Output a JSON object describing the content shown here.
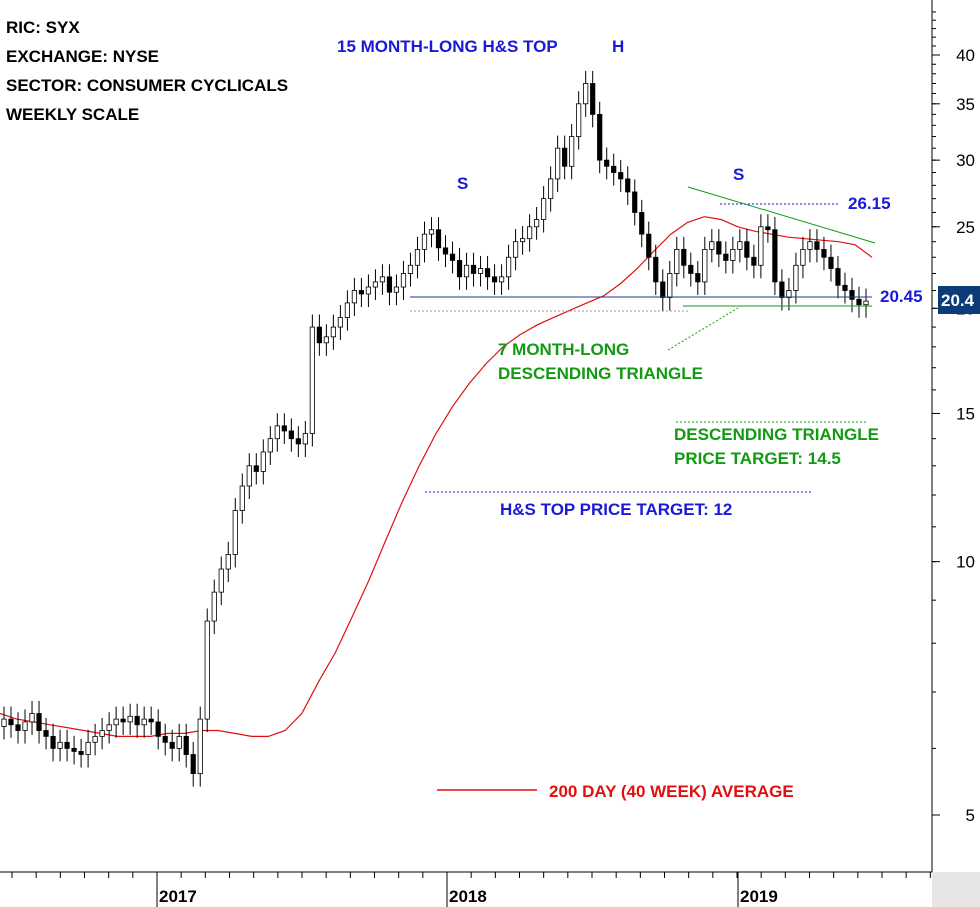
{
  "info": {
    "ric": "RIC: SYX",
    "exchange": "EXCHANGE: NYSE",
    "sector": "SECTOR: CONSUMER CYCLICALS",
    "scale": "WEEKLY SCALE"
  },
  "annotations": {
    "hs_title": "15 MONTH-LONG H&S TOP",
    "left_shoulder": "S",
    "head": "H",
    "right_shoulder": "S",
    "resistance_value": "26.15",
    "support_value": "20.45",
    "triangle_line1": "7 MONTH-LONG",
    "triangle_line2": "DESCENDING TRIANGLE",
    "triangle_target_line1": "DESCENDING TRIANGLE",
    "triangle_target_line2": "PRICE TARGET: 14.5",
    "hs_target": "H&S TOP PRICE TARGET: 12",
    "ma_legend": "200 DAY (40 WEEK) AVERAGE",
    "last_price": "20.4"
  },
  "colors": {
    "blue": "#1a1ad6",
    "green": "#139a13",
    "red": "#e01010",
    "navy": "#1f3a93",
    "last_price_bg": "#0d3b78",
    "candle": "#000000",
    "ma": "#e01010"
  },
  "chart_data": {
    "type": "candlestick",
    "y_scale": "log",
    "ylim": [
      4.5,
      45
    ],
    "y_ticks": [
      5,
      10,
      15,
      20,
      25,
      30,
      35,
      40
    ],
    "x_ticks": [
      "2017",
      "2018",
      "2019"
    ],
    "series": [
      {
        "name": "SYX weekly price (approx close)",
        "values": [
          6.5,
          6.4,
          6.3,
          6.45,
          6.6,
          6.3,
          6.2,
          6.0,
          6.1,
          6.0,
          5.95,
          5.9,
          6.1,
          6.2,
          6.3,
          6.4,
          6.5,
          6.45,
          6.55,
          6.4,
          6.5,
          6.45,
          6.2,
          6.1,
          6.0,
          6.2,
          5.9,
          5.6,
          6.5,
          8.5,
          9.2,
          9.8,
          10.2,
          11.5,
          12.3,
          13.0,
          12.8,
          13.5,
          14.0,
          14.5,
          14.3,
          14.0,
          13.8,
          14.2,
          19.0,
          18.2,
          18.5,
          19.0,
          19.5,
          20.3,
          21.0,
          20.8,
          21.2,
          21.5,
          21.8,
          20.9,
          21.2,
          22.0,
          22.5,
          23.5,
          24.5,
          24.8,
          23.6,
          23.2,
          22.8,
          21.8,
          22.5,
          22.0,
          22.3,
          21.8,
          21.5,
          21.8,
          23.0,
          24.0,
          24.2,
          25.0,
          25.5,
          27.0,
          28.5,
          31.0,
          29.5,
          32.0,
          35.0,
          37.0,
          34.0,
          30.0,
          29.5,
          29.0,
          28.5,
          27.5,
          26.0,
          24.5,
          23.0,
          21.5,
          20.6,
          22.0,
          23.5,
          22.5,
          22.0,
          21.5,
          23.5,
          24.0,
          23.2,
          22.8,
          23.5,
          24.0,
          23.0,
          22.5,
          25.0,
          24.8,
          21.5,
          20.6,
          21.0,
          22.5,
          23.5,
          24.0,
          23.5,
          23.0,
          22.3,
          21.3,
          21.0,
          20.5,
          20.2,
          20.4
        ],
        "color": "#000000"
      },
      {
        "name": "200 DAY (40 WEEK) AVERAGE",
        "values": [
          6.6,
          6.5,
          6.45,
          6.4,
          6.35,
          6.3,
          6.25,
          6.2,
          6.2,
          6.2,
          6.25,
          6.25,
          6.3,
          6.3,
          6.25,
          6.2,
          6.2,
          6.3,
          6.6,
          7.2,
          7.8,
          8.6,
          9.5,
          10.6,
          11.8,
          13.0,
          14.2,
          15.3,
          16.3,
          17.2,
          18.0,
          18.6,
          19.1,
          19.5,
          19.9,
          20.3,
          20.7,
          21.4,
          22.3,
          23.4,
          24.5,
          25.3,
          25.7,
          25.5,
          25.0,
          24.7,
          24.5,
          24.3,
          24.2,
          24.1,
          24.0,
          23.8,
          23.0
        ],
        "color": "#e01010"
      }
    ],
    "levels": [
      {
        "name": "H&S neckline",
        "value": 20.45
      },
      {
        "name": "Triangle resistance high",
        "value": 26.15
      },
      {
        "name": "Descending triangle price target",
        "value": 14.5
      },
      {
        "name": "H&S top price target",
        "value": 12
      }
    ]
  }
}
